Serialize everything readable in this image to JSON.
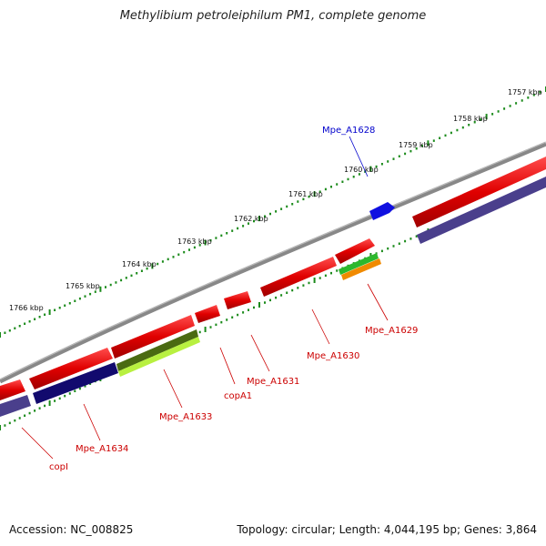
{
  "title": "Methylibium petroleiphilum PM1, complete genome",
  "footer": {
    "accession": "Accession: NC_008825",
    "summary": "Topology: circular; Length: 4,044,195 bp; Genes: 3,864"
  },
  "ruler": {
    "labels": [
      "1757 kbp",
      "1758 kbp",
      "1759 kbp",
      "1760 kbp",
      "1761 kbp",
      "1762 kbp",
      "1763 kbp",
      "1764 kbp",
      "1765 kbp",
      "1766 kbp"
    ]
  },
  "colors": {
    "backbone": "#888888",
    "ruler_dot": "#1a8a1a",
    "cds_forward": "#e60000",
    "cds_reverse_dark": "#120a6e",
    "cds_reverse_purple": "#4a3f8c",
    "gene_blue": "#1010e0",
    "gene_green": "#2db82d",
    "gene_orange": "#f08a00",
    "gene_olive": "#4a6a12",
    "gene_lime": "#b8f040",
    "label_red": "#cc0000",
    "label_blue": "#0000cc"
  },
  "gene_labels": [
    {
      "name": "Mpe_A1628",
      "color": "blue"
    },
    {
      "name": "Mpe_A1629",
      "color": "red"
    },
    {
      "name": "Mpe_A1630",
      "color": "red"
    },
    {
      "name": "Mpe_A1631",
      "color": "red"
    },
    {
      "name": "copA1",
      "color": "red"
    },
    {
      "name": "Mpe_A1633",
      "color": "red"
    },
    {
      "name": "Mpe_A1634",
      "color": "red"
    },
    {
      "name": "copI",
      "color": "red"
    }
  ]
}
